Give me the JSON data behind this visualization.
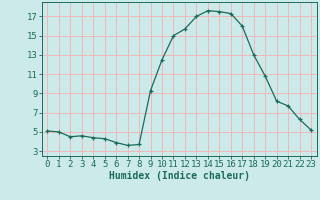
{
  "x": [
    0,
    1,
    2,
    3,
    4,
    5,
    6,
    7,
    8,
    9,
    10,
    11,
    12,
    13,
    14,
    15,
    16,
    17,
    18,
    19,
    20,
    21,
    22,
    23
  ],
  "y": [
    5.1,
    5.0,
    4.5,
    4.6,
    4.4,
    4.3,
    3.9,
    3.6,
    3.7,
    9.3,
    12.5,
    15.0,
    15.7,
    17.0,
    17.6,
    17.5,
    17.3,
    16.0,
    13.0,
    10.8,
    8.2,
    7.7,
    6.3,
    5.2
  ],
  "line_color": "#1a6b5a",
  "marker": "+",
  "marker_size": 3,
  "bg_color": "#cdeaea",
  "grid_color": "#f0b8b8",
  "xlabel": "Humidex (Indice chaleur)",
  "yticks": [
    3,
    5,
    7,
    9,
    11,
    13,
    15,
    17
  ],
  "xticks": [
    0,
    1,
    2,
    3,
    4,
    5,
    6,
    7,
    8,
    9,
    10,
    11,
    12,
    13,
    14,
    15,
    16,
    17,
    18,
    19,
    20,
    21,
    22,
    23
  ],
  "xlim": [
    -0.5,
    23.5
  ],
  "ylim": [
    2.5,
    18.5
  ],
  "xlabel_fontsize": 7,
  "tick_fontsize": 6.5
}
